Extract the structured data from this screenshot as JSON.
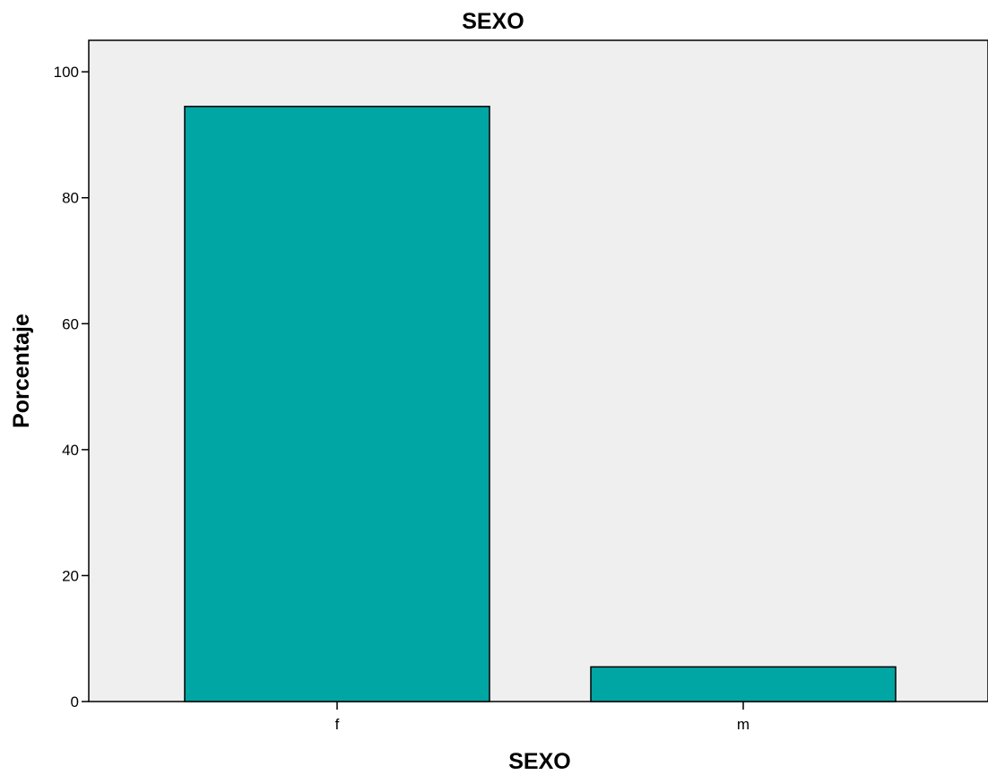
{
  "chart_data": {
    "type": "bar",
    "title": "SEXO",
    "xlabel": "SEXO",
    "ylabel": "Porcentaje",
    "categories": [
      "f",
      "m"
    ],
    "values": [
      94.5,
      5.5
    ],
    "ylim": [
      0,
      105
    ],
    "yticks": [
      0,
      20,
      40,
      60,
      80,
      100
    ],
    "grid": false,
    "legend": "none",
    "colors": {
      "bar_fill": "#00A6A4",
      "bar_stroke": "#000000",
      "plot_background": "#EFEFEF",
      "axis": "#000000"
    }
  }
}
